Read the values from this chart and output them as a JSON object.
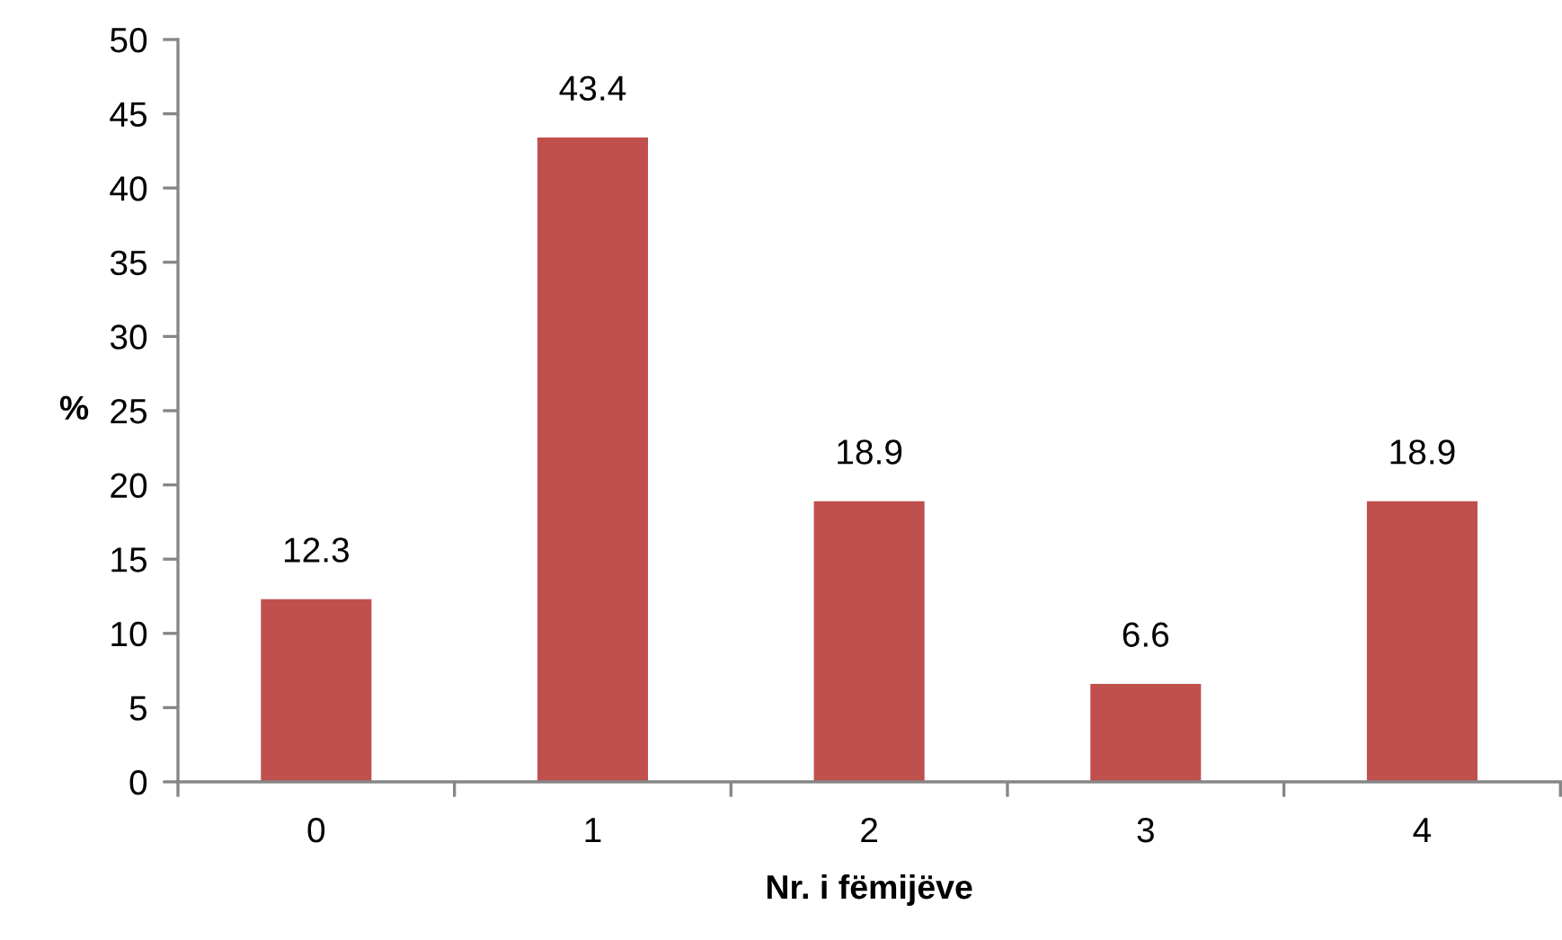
{
  "chart_data": {
    "type": "bar",
    "xlabel": "Nr. i fëmijëve",
    "ylabel": "%",
    "categories": [
      "0",
      "1",
      "2",
      "3",
      "4"
    ],
    "values": [
      12.3,
      43.4,
      18.9,
      6.6,
      18.9
    ],
    "color": "#c0504d",
    "ylim": [
      0,
      50
    ],
    "yticks": [
      0,
      5,
      10,
      15,
      20,
      25,
      30,
      35,
      40,
      45,
      50
    ],
    "grid": false,
    "data_labels": true
  }
}
